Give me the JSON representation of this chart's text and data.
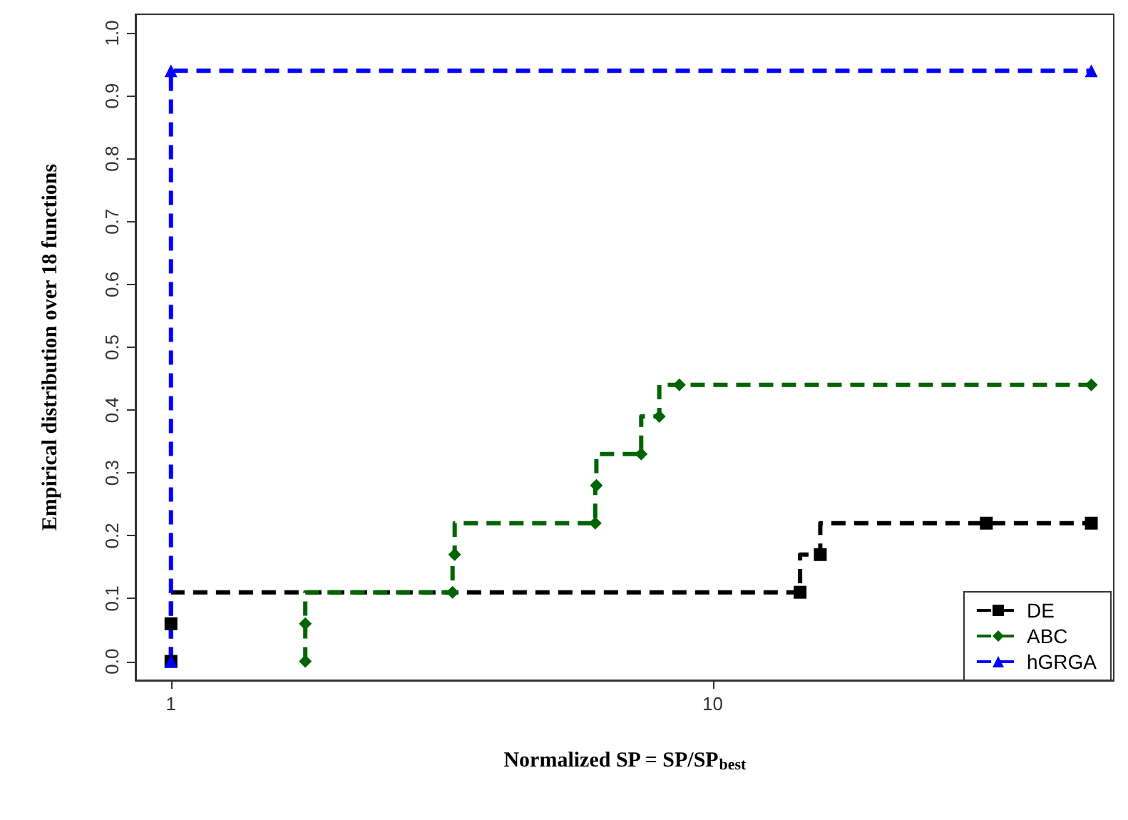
{
  "chart_data": {
    "type": "step",
    "xlabel": "Normalized SP = SP/SP$_{best}$",
    "ylabel": "Empirical distribution over 18 functions",
    "log": "x",
    "xlim": [
      0.86,
      55
    ],
    "xticks": [
      1,
      10
    ],
    "ylim": [
      -0.03,
      1.03
    ],
    "yticks": [
      {
        "value": 0,
        "label": "0.0"
      },
      0.1,
      0.2,
      0.3,
      0.4,
      0.5,
      0.6,
      0.7,
      0.8,
      0.9,
      {
        "value": 1,
        "label": "1.0"
      }
    ],
    "grid": false,
    "legend": "bottom right",
    "line_style": "dashed",
    "series": [
      {
        "name": "DE",
        "color": "#000000",
        "marker": "square",
        "x": [
          1,
          1,
          14.5,
          15.8,
          32,
          50
        ],
        "values": [
          0,
          0.06,
          0.11,
          0.17,
          0.22,
          0.22
        ]
      },
      {
        "name": "ABC",
        "color": "#006400",
        "marker": "diamond",
        "x": [
          1.77,
          1.77,
          3.31,
          3.34,
          6.07,
          6.1,
          7.38,
          7.97,
          8.68,
          50
        ],
        "values": [
          0,
          0.06,
          0.11,
          0.17,
          0.22,
          0.28,
          0.33,
          0.39,
          0.44,
          0.44
        ]
      },
      {
        "name": "hGRGA",
        "color": "#0000ff",
        "marker": "triangle",
        "x": [
          1,
          1,
          50
        ],
        "values": [
          0,
          0.94,
          0.94
        ]
      }
    ]
  }
}
